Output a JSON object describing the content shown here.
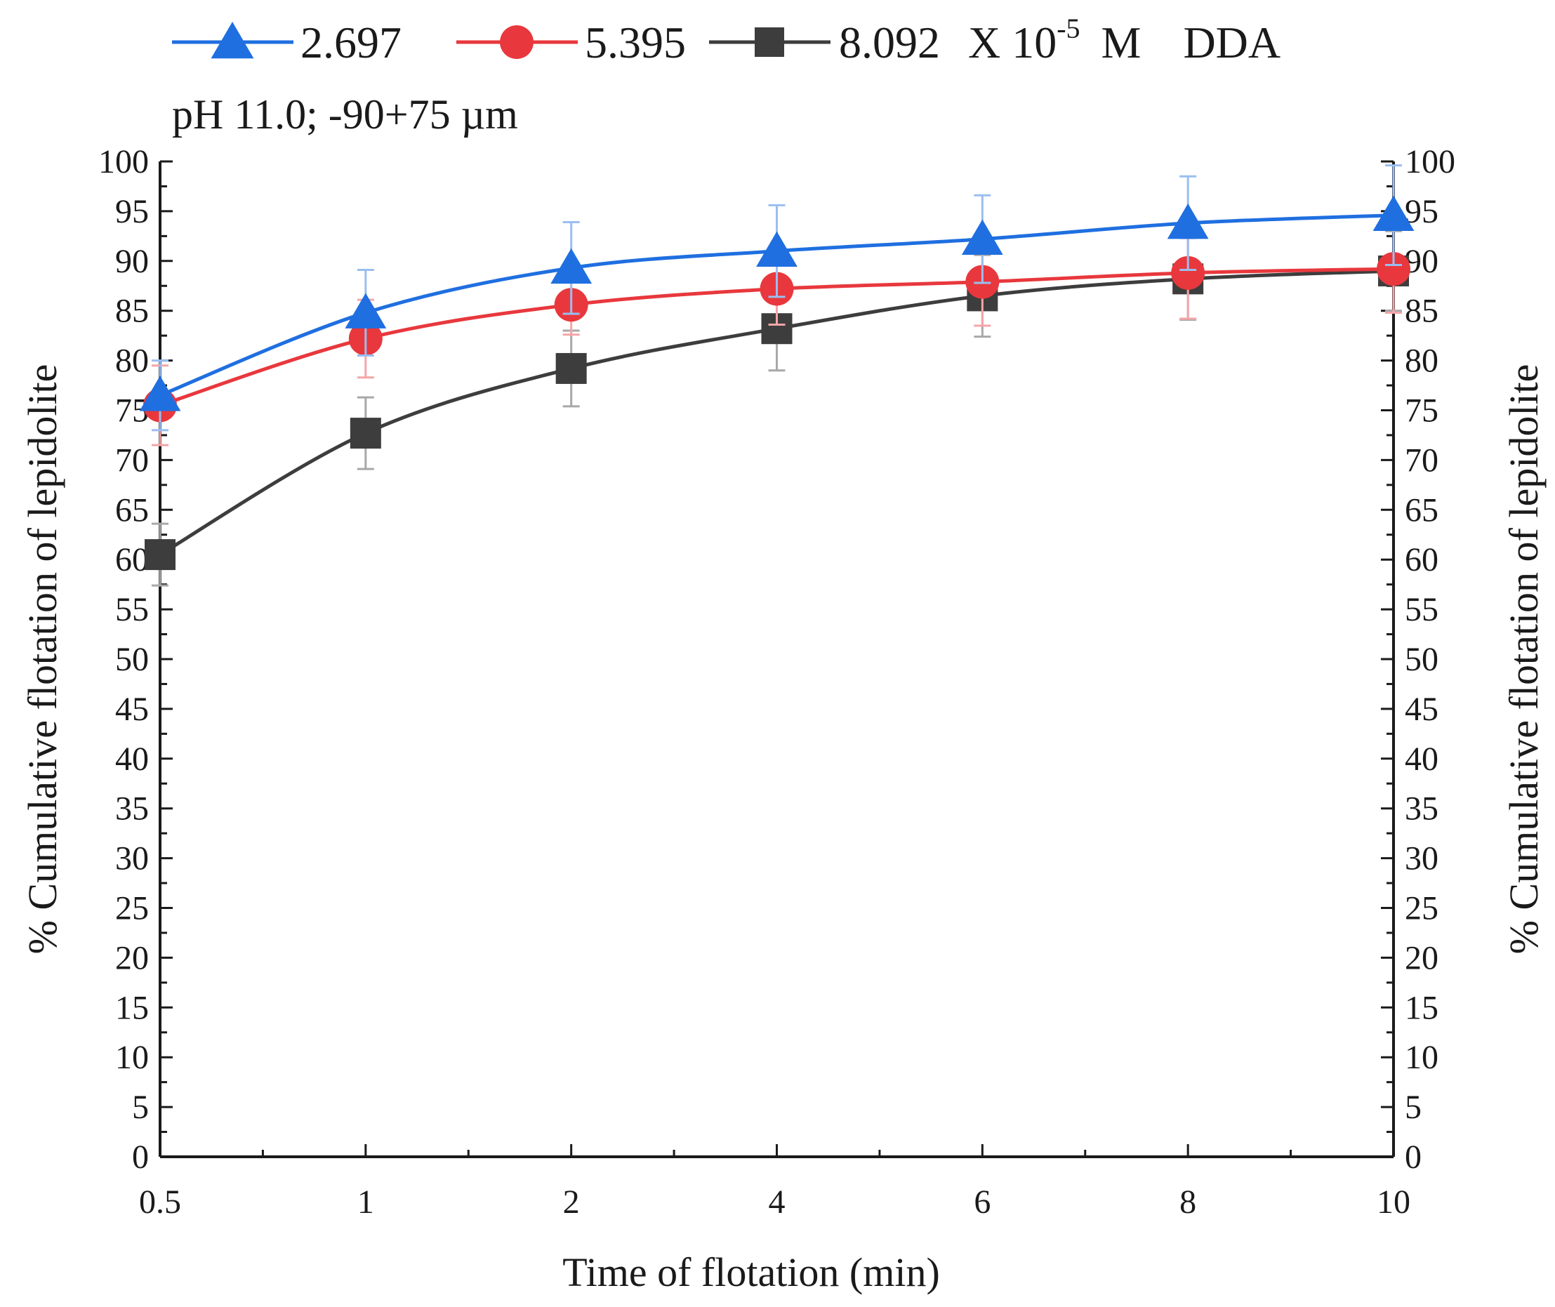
{
  "chart_data": {
    "type": "line",
    "x": [
      "0.5",
      "1",
      "2",
      "4",
      "6",
      "8",
      "10"
    ],
    "xlabel": "Time of flotation (min)",
    "ylabel": "% Cumulative flotation of lepidolite",
    "ylabel_right": "% Cumulative flotation of lepidolite",
    "ylim": [
      0,
      100
    ],
    "yticks": [
      "0",
      "5",
      "10",
      "15",
      "20",
      "25",
      "30",
      "35",
      "40",
      "45",
      "50",
      "55",
      "60",
      "65",
      "70",
      "75",
      "80",
      "85",
      "90",
      "95",
      "100"
    ],
    "grid": false,
    "legend_position": "top",
    "annotation": "pH 11.0;  -90+75 µm",
    "legend_suffix": {
      "base": "X 10",
      "exponent": "-5",
      "unit": "M",
      "reagent": "DDA"
    },
    "series": [
      {
        "name": "2.697",
        "marker": "triangle",
        "color": "#1f6fe0",
        "values": [
          76.5,
          84.8,
          89.3,
          91.0,
          92.2,
          93.8,
          94.6
        ],
        "errors": [
          3.5,
          4.3,
          4.6,
          4.6,
          4.4,
          4.7,
          5.0
        ]
      },
      {
        "name": "5.395",
        "marker": "circle",
        "color": "#e8383d",
        "values": [
          75.5,
          82.2,
          85.6,
          87.2,
          87.9,
          88.8,
          89.2
        ],
        "errors": [
          4.0,
          3.9,
          3.0,
          3.6,
          4.4,
          4.6,
          4.4
        ]
      },
      {
        "name": "8.092",
        "marker": "square",
        "color": "#3d3d3d",
        "values": [
          60.5,
          72.7,
          79.2,
          83.2,
          86.5,
          88.2,
          89.0
        ],
        "errors": [
          3.1,
          3.6,
          3.8,
          4.2,
          4.1,
          4.1,
          4.0
        ]
      }
    ]
  }
}
